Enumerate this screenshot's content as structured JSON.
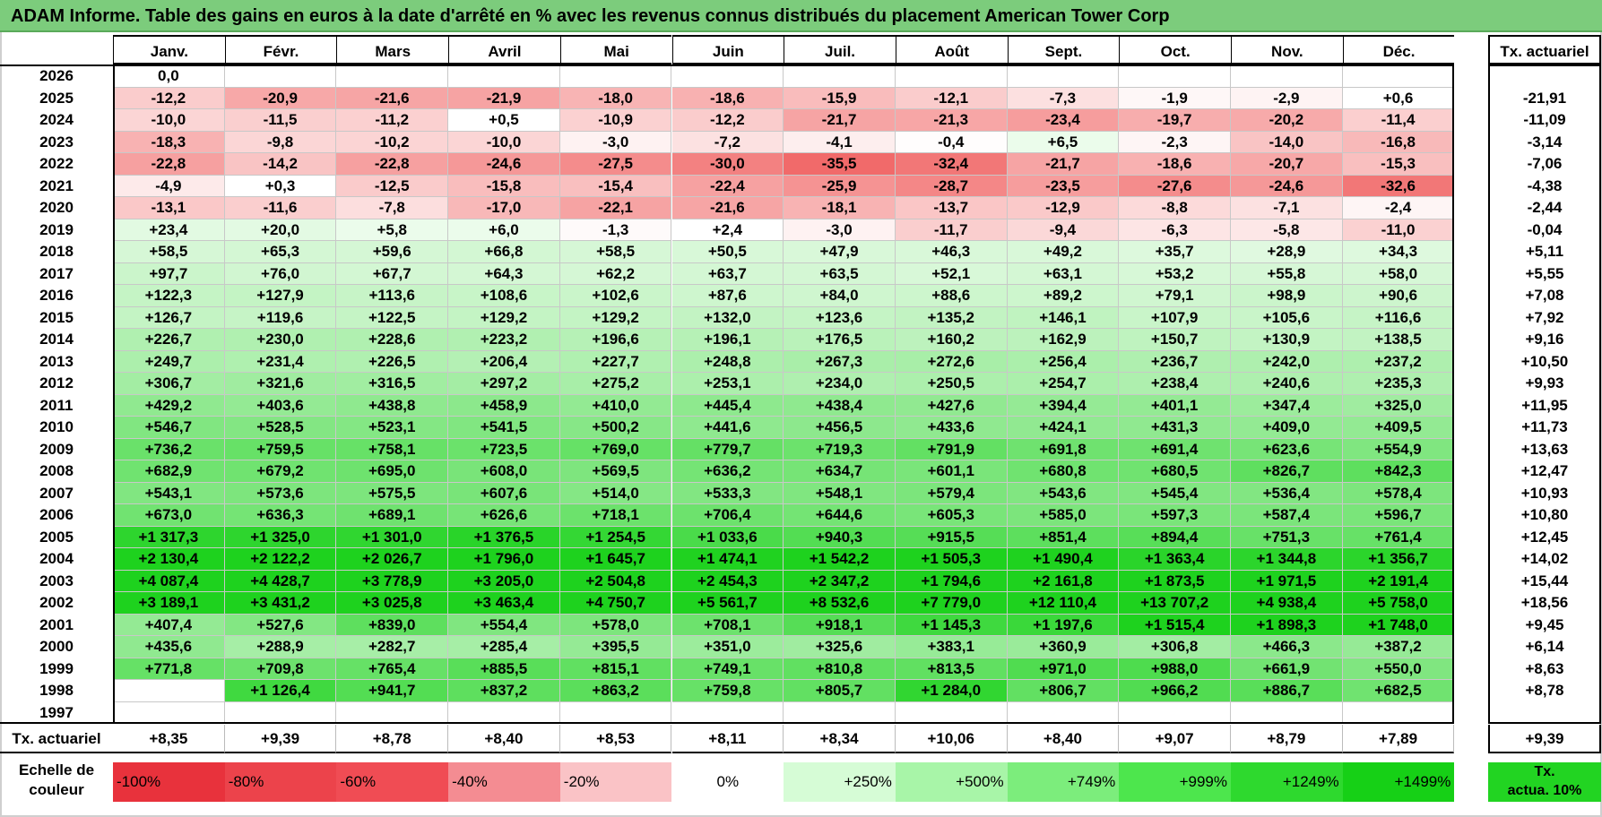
{
  "title": "ADAM Informe. Table des gains en euros à la date d'arrêté en % avec les revenus connus distribués du placement American Tower Corp",
  "months": [
    "Janv.",
    "Févr.",
    "Mars",
    "Avril",
    "Mai",
    "Juin",
    "Juil.",
    "Août",
    "Sept.",
    "Oct.",
    "Nov.",
    "Déc."
  ],
  "tx_header": "Tx. actuariel",
  "rows": [
    {
      "year": "2026",
      "values": [
        "0,0",
        "",
        "",
        "",
        "",
        "",
        "",
        "",
        "",
        "",
        "",
        ""
      ],
      "tx": ""
    },
    {
      "year": "2025",
      "values": [
        "-12,2",
        "-20,9",
        "-21,6",
        "-21,9",
        "-18,0",
        "-18,6",
        "-15,9",
        "-12,1",
        "-7,3",
        "-1,9",
        "-2,9",
        "+0,6"
      ],
      "tx": "-21,91"
    },
    {
      "year": "2024",
      "values": [
        "-10,0",
        "-11,5",
        "-11,2",
        "+0,5",
        "-10,9",
        "-12,2",
        "-21,7",
        "-21,3",
        "-23,4",
        "-19,7",
        "-20,2",
        "-11,4"
      ],
      "tx": "-11,09"
    },
    {
      "year": "2023",
      "values": [
        "-18,3",
        "-9,8",
        "-10,2",
        "-10,0",
        "-3,0",
        "-7,2",
        "-4,1",
        "-0,4",
        "+6,5",
        "-2,3",
        "-14,0",
        "-16,8"
      ],
      "tx": "-3,14"
    },
    {
      "year": "2022",
      "values": [
        "-22,8",
        "-14,2",
        "-22,8",
        "-24,6",
        "-27,5",
        "-30,0",
        "-35,5",
        "-32,4",
        "-21,7",
        "-18,6",
        "-20,7",
        "-15,3"
      ],
      "tx": "-7,06"
    },
    {
      "year": "2021",
      "values": [
        "-4,9",
        "+0,3",
        "-12,5",
        "-15,8",
        "-15,4",
        "-22,4",
        "-25,9",
        "-28,7",
        "-23,5",
        "-27,6",
        "-24,6",
        "-32,6"
      ],
      "tx": "-4,38"
    },
    {
      "year": "2020",
      "values": [
        "-13,1",
        "-11,6",
        "-7,8",
        "-17,0",
        "-22,1",
        "-21,6",
        "-18,1",
        "-13,7",
        "-12,9",
        "-8,8",
        "-7,1",
        "-2,4"
      ],
      "tx": "-2,44"
    },
    {
      "year": "2019",
      "values": [
        "+23,4",
        "+20,0",
        "+5,8",
        "+6,0",
        "-1,3",
        "+2,4",
        "-3,0",
        "-11,7",
        "-9,4",
        "-6,3",
        "-5,8",
        "-11,0"
      ],
      "tx": "-0,04"
    },
    {
      "year": "2018",
      "values": [
        "+58,5",
        "+65,3",
        "+59,6",
        "+66,8",
        "+58,5",
        "+50,5",
        "+47,9",
        "+46,3",
        "+49,2",
        "+35,7",
        "+28,9",
        "+34,3"
      ],
      "tx": "+5,11"
    },
    {
      "year": "2017",
      "values": [
        "+97,7",
        "+76,0",
        "+67,7",
        "+64,3",
        "+62,2",
        "+63,7",
        "+63,5",
        "+52,1",
        "+63,1",
        "+53,2",
        "+55,8",
        "+58,0"
      ],
      "tx": "+5,55"
    },
    {
      "year": "2016",
      "values": [
        "+122,3",
        "+127,9",
        "+113,6",
        "+108,6",
        "+102,6",
        "+87,6",
        "+84,0",
        "+88,6",
        "+89,2",
        "+79,1",
        "+98,9",
        "+90,6"
      ],
      "tx": "+7,08"
    },
    {
      "year": "2015",
      "values": [
        "+126,7",
        "+119,6",
        "+122,5",
        "+129,2",
        "+129,2",
        "+132,0",
        "+123,6",
        "+135,2",
        "+146,1",
        "+107,9",
        "+105,6",
        "+116,6"
      ],
      "tx": "+7,92"
    },
    {
      "year": "2014",
      "values": [
        "+226,7",
        "+230,0",
        "+228,6",
        "+223,2",
        "+196,6",
        "+196,1",
        "+176,5",
        "+160,2",
        "+162,9",
        "+150,7",
        "+130,9",
        "+138,5"
      ],
      "tx": "+9,16"
    },
    {
      "year": "2013",
      "values": [
        "+249,7",
        "+231,4",
        "+226,5",
        "+206,4",
        "+227,7",
        "+248,8",
        "+267,3",
        "+272,6",
        "+256,4",
        "+236,7",
        "+242,0",
        "+237,2"
      ],
      "tx": "+10,50"
    },
    {
      "year": "2012",
      "values": [
        "+306,7",
        "+321,6",
        "+316,5",
        "+297,2",
        "+275,2",
        "+253,1",
        "+234,0",
        "+250,5",
        "+254,7",
        "+238,4",
        "+240,6",
        "+235,3"
      ],
      "tx": "+9,93"
    },
    {
      "year": "2011",
      "values": [
        "+429,2",
        "+403,6",
        "+438,8",
        "+458,9",
        "+410,0",
        "+445,4",
        "+438,4",
        "+427,6",
        "+394,4",
        "+401,1",
        "+347,4",
        "+325,0"
      ],
      "tx": "+11,95"
    },
    {
      "year": "2010",
      "values": [
        "+546,7",
        "+528,5",
        "+523,1",
        "+541,5",
        "+500,2",
        "+441,6",
        "+456,5",
        "+433,6",
        "+424,1",
        "+431,3",
        "+409,0",
        "+409,5"
      ],
      "tx": "+11,73"
    },
    {
      "year": "2009",
      "values": [
        "+736,2",
        "+759,5",
        "+758,1",
        "+723,5",
        "+769,0",
        "+779,7",
        "+719,3",
        "+791,9",
        "+691,8",
        "+691,4",
        "+623,6",
        "+554,9"
      ],
      "tx": "+13,63"
    },
    {
      "year": "2008",
      "values": [
        "+682,9",
        "+679,2",
        "+695,0",
        "+608,0",
        "+569,5",
        "+636,2",
        "+634,7",
        "+601,1",
        "+680,8",
        "+680,5",
        "+826,7",
        "+842,3"
      ],
      "tx": "+12,47"
    },
    {
      "year": "2007",
      "values": [
        "+543,1",
        "+573,6",
        "+575,5",
        "+607,6",
        "+514,0",
        "+533,3",
        "+548,1",
        "+579,4",
        "+543,6",
        "+545,4",
        "+536,4",
        "+578,4"
      ],
      "tx": "+10,93"
    },
    {
      "year": "2006",
      "values": [
        "+673,0",
        "+636,3",
        "+689,1",
        "+626,6",
        "+718,1",
        "+706,4",
        "+644,6",
        "+605,3",
        "+585,0",
        "+597,3",
        "+587,4",
        "+596,7"
      ],
      "tx": "+10,80"
    },
    {
      "year": "2005",
      "values": [
        "+1 317,3",
        "+1 325,0",
        "+1 301,0",
        "+1 376,5",
        "+1 254,5",
        "+1 033,6",
        "+940,3",
        "+915,5",
        "+851,4",
        "+894,4",
        "+751,3",
        "+761,4"
      ],
      "tx": "+12,45"
    },
    {
      "year": "2004",
      "values": [
        "+2 130,4",
        "+2 122,2",
        "+2 026,7",
        "+1 796,0",
        "+1 645,7",
        "+1 474,1",
        "+1 542,2",
        "+1 505,3",
        "+1 490,4",
        "+1 363,4",
        "+1 344,8",
        "+1 356,7"
      ],
      "tx": "+14,02"
    },
    {
      "year": "2003",
      "values": [
        "+4 087,4",
        "+4 428,7",
        "+3 778,9",
        "+3 205,0",
        "+2 504,8",
        "+2 454,3",
        "+2 347,2",
        "+1 794,6",
        "+2 161,8",
        "+1 873,5",
        "+1 971,5",
        "+2 191,4"
      ],
      "tx": "+15,44"
    },
    {
      "year": "2002",
      "values": [
        "+3 189,1",
        "+3 431,2",
        "+3 025,8",
        "+3 463,4",
        "+4 750,7",
        "+5 561,7",
        "+8 532,6",
        "+7 779,0",
        "+12 110,4",
        "+13 707,2",
        "+4 938,4",
        "+5 758,0"
      ],
      "tx": "+18,56"
    },
    {
      "year": "2001",
      "values": [
        "+407,4",
        "+527,6",
        "+839,0",
        "+554,4",
        "+578,0",
        "+708,1",
        "+918,1",
        "+1 145,3",
        "+1 197,6",
        "+1 515,4",
        "+1 898,3",
        "+1 748,0"
      ],
      "tx": "+9,45"
    },
    {
      "year": "2000",
      "values": [
        "+435,6",
        "+288,9",
        "+282,7",
        "+285,4",
        "+395,5",
        "+351,0",
        "+325,6",
        "+383,1",
        "+360,9",
        "+306,8",
        "+466,3",
        "+387,2"
      ],
      "tx": "+6,14"
    },
    {
      "year": "1999",
      "values": [
        "+771,8",
        "+709,8",
        "+765,4",
        "+885,5",
        "+815,1",
        "+749,1",
        "+810,8",
        "+813,5",
        "+971,0",
        "+988,0",
        "+661,9",
        "+550,0"
      ],
      "tx": "+8,63"
    },
    {
      "year": "1998",
      "values": [
        "",
        "+1 126,4",
        "+941,7",
        "+837,2",
        "+863,2",
        "+759,8",
        "+805,7",
        "+1 284,0",
        "+806,7",
        "+966,2",
        "+886,7",
        "+682,5"
      ],
      "tx": "+8,78"
    },
    {
      "year": "1997",
      "values": [
        "",
        "",
        "",
        "",
        "",
        "",
        "",
        "",
        "",
        "",
        "",
        ""
      ],
      "tx": ""
    }
  ],
  "footer": {
    "label": "Tx. actuariel",
    "values": [
      "+8,35",
      "+9,39",
      "+8,78",
      "+8,40",
      "+8,53",
      "+8,11",
      "+8,34",
      "+10,06",
      "+8,40",
      "+9,07",
      "+8,79",
      "+7,89"
    ],
    "tx": "+9,39"
  },
  "legend": {
    "label_line1": "Echelle de",
    "label_line2": "couleur",
    "items": [
      {
        "text": "-100%",
        "color": "#e8323c",
        "align": "left"
      },
      {
        "text": "-80%",
        "color": "#ec434b",
        "align": "left"
      },
      {
        "text": "-60%",
        "color": "#f04c54",
        "align": "left"
      },
      {
        "text": "-40%",
        "color": "#f48c92",
        "align": "left"
      },
      {
        "text": "-20%",
        "color": "#fac3c6",
        "align": "left"
      },
      {
        "text": "0%",
        "color": "#ffffff",
        "align": "center"
      },
      {
        "text": "+250%",
        "color": "#d6fcd6",
        "align": "right"
      },
      {
        "text": "+500%",
        "color": "#a8f5a8",
        "align": "right"
      },
      {
        "text": "+749%",
        "color": "#7ced7c",
        "align": "right"
      },
      {
        "text": "+999%",
        "color": "#4de64d",
        "align": "right"
      },
      {
        "text": "+1249%",
        "color": "#2ed92e",
        "align": "right"
      },
      {
        "text": "+1499%",
        "color": "#16d016",
        "align": "right"
      }
    ],
    "tx_line1": "Tx.",
    "tx_line2": "actua. 10%",
    "tx_color": "#22d422"
  },
  "colors": {
    "title_bg": "#7ccc7c",
    "red_max": "#f06060",
    "green_max": "#1ed21e"
  }
}
